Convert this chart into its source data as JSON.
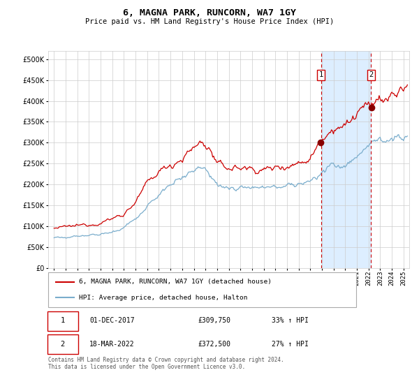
{
  "title": "6, MAGNA PARK, RUNCORN, WA7 1GY",
  "subtitle": "Price paid vs. HM Land Registry's House Price Index (HPI)",
  "red_label": "6, MAGNA PARK, RUNCORN, WA7 1GY (detached house)",
  "blue_label": "HPI: Average price, detached house, Halton",
  "annotation1": {
    "num": "1",
    "date": "01-DEC-2017",
    "price": "£309,750",
    "pct": "33% ↑ HPI",
    "x": 2017.92
  },
  "annotation2": {
    "num": "2",
    "date": "18-MAR-2022",
    "price": "£372,500",
    "pct": "27% ↑ HPI",
    "x": 2022.21
  },
  "footnote": "Contains HM Land Registry data © Crown copyright and database right 2024.\nThis data is licensed under the Open Government Licence v3.0.",
  "ylim": [
    0,
    520000
  ],
  "yticks": [
    0,
    50000,
    100000,
    150000,
    200000,
    250000,
    300000,
    350000,
    400000,
    450000,
    500000
  ],
  "xlim": [
    1994.5,
    2025.5
  ],
  "xticks": [
    1995,
    1996,
    1997,
    1998,
    1999,
    2000,
    2001,
    2002,
    2003,
    2004,
    2005,
    2006,
    2007,
    2008,
    2009,
    2010,
    2011,
    2012,
    2013,
    2014,
    2015,
    2016,
    2017,
    2018,
    2019,
    2020,
    2021,
    2022,
    2023,
    2024,
    2025
  ],
  "red_color": "#cc0000",
  "blue_color": "#7aadcc",
  "shade_color": "#ddeeff",
  "vline_color": "#cc0000",
  "background_color": "#ffffff",
  "grid_color": "#cccccc",
  "ann_dot_color": "#880000"
}
